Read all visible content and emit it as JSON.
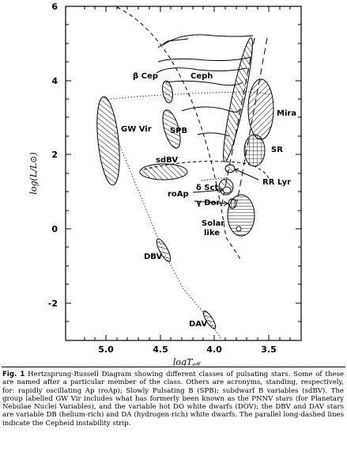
{
  "figure": {
    "ylabel": "log(L/L⊙)",
    "xlabel_main": "logT",
    "xlabel_sub": "eff",
    "x_ticks": [
      "5.0",
      "4.5",
      "4.0",
      "3.5"
    ],
    "y_ticks": [
      "6",
      "4",
      "2",
      "0",
      "-2"
    ],
    "labels": {
      "beta_cep": "β Cep",
      "ceph": "Ceph",
      "gw_vir": "GW Vir",
      "spb": "SPB",
      "mira": "Mira",
      "sdbv": "sdBV",
      "sr": "SR",
      "delta_sct": "δ Sct",
      "roap": "roAp",
      "rr_lyr": "RR Lyr",
      "gamma_dor": "γ Dor",
      "solar_like_1": "Solar",
      "solar_like_2": "like",
      "dbv": "DBV",
      "dav": "DAV"
    }
  },
  "chart_data": {
    "type": "scatter",
    "xlabel": "logT_eff",
    "ylabel": "log(L/L⊙)",
    "xlim": [
      5.4,
      3.2
    ],
    "ylim": [
      -3,
      6
    ],
    "x_reversed": true,
    "regions": [
      {
        "name": "β Cep",
        "x": 4.38,
        "y": 4.05
      },
      {
        "name": "Ceph",
        "x": 3.78,
        "y": 3.6
      },
      {
        "name": "GW Vir",
        "x": 5.05,
        "y": 2.4
      },
      {
        "name": "SPB",
        "x": 4.2,
        "y": 2.7
      },
      {
        "name": "Mira",
        "x": 3.55,
        "y": 3.05
      },
      {
        "name": "sdBV",
        "x": 4.45,
        "y": 1.5
      },
      {
        "name": "SR",
        "x": 3.6,
        "y": 2.1
      },
      {
        "name": "δ Sct",
        "x": 3.88,
        "y": 1.2
      },
      {
        "name": "roAp",
        "x": 3.92,
        "y": 0.95
      },
      {
        "name": "RR Lyr",
        "x": 3.83,
        "y": 1.65
      },
      {
        "name": "γ Dor",
        "x": 3.87,
        "y": 0.7
      },
      {
        "name": "Solar like",
        "x": 3.75,
        "y": 0.3
      },
      {
        "name": "DBV",
        "x": 4.45,
        "y": -0.55
      },
      {
        "name": "DAV",
        "x": 4.05,
        "y": -2.5
      }
    ]
  },
  "caption": {
    "lead": "Fig. 1",
    "text": "Hertzsprung-Russell Diagram showing different classes of pulsating stars. Some of these are named after a particular member of the class. Others are acronyms, standing, respectively, for: rapidly oscillating Ap (roAp); Slowly Pulsating B (SPB); subdwarf B variables (sdBV). The group labelled GW Vir includes what has formerly been known as the PNNV stars (for Planetary Nebulae Nuclei Variables), and the variable hot DO white dwarfs (DOV); the DBV and DAV stars are variable DB (helium-rich) and DA (hydrogen-rich) white dwarfs. The parallel long-dashed lines indicate the Cepheid instability strip."
  }
}
